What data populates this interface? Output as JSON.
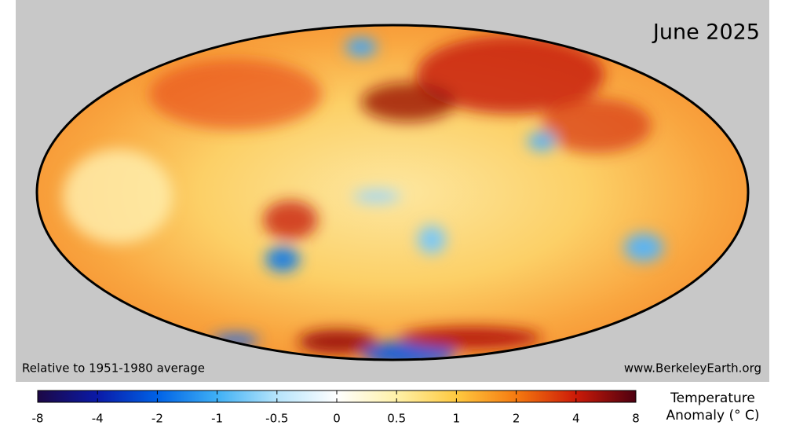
{
  "title": "June 2025",
  "note": "Relative to 1951-1980 average",
  "source": "www.BerkeleyEarth.org",
  "colorbar": {
    "label": [
      "Temperature",
      "Anomaly (° C)"
    ],
    "ticks": [
      -8,
      -4,
      -2,
      -1,
      -0.5,
      0,
      0.5,
      1,
      2,
      4,
      8
    ]
  }
}
